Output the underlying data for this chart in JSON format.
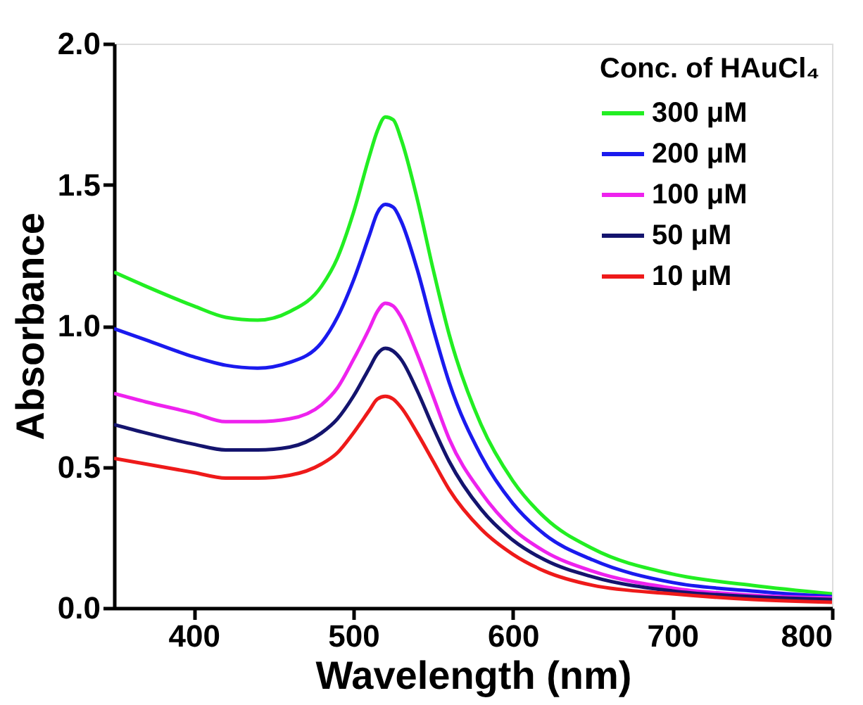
{
  "chart_data": {
    "type": "line",
    "xlabel": "Wavelength (nm)",
    "ylabel": "Absorbance",
    "legend_title": "Conc. of HAuCl₄",
    "legend": "top right",
    "grid": false,
    "marker": "none",
    "line_style": "solid",
    "xlim": [
      350,
      800
    ],
    "xticks": [
      400,
      500,
      600,
      700,
      800
    ],
    "ylim": [
      0,
      2.0
    ],
    "yticks": [
      {
        "value": 0,
        "label": "0.0"
      },
      0.5,
      {
        "value": 1,
        "label": "1.0"
      },
      1.5,
      {
        "value": 2,
        "label": "2.0"
      }
    ],
    "x": [
      350,
      370,
      400,
      420,
      440,
      460,
      480,
      490,
      500,
      510,
      515,
      520,
      525,
      530,
      540,
      550,
      560,
      580,
      600,
      620,
      650,
      700,
      750,
      800
    ],
    "series": [
      {
        "name": "300 μM",
        "color": "#22ee22",
        "values": [
          1.19,
          1.14,
          1.07,
          1.03,
          1.02,
          1.05,
          1.14,
          1.24,
          1.4,
          1.6,
          1.69,
          1.74,
          1.73,
          1.66,
          1.45,
          1.2,
          0.97,
          0.65,
          0.45,
          0.32,
          0.21,
          0.12,
          0.08,
          0.05
        ]
      },
      {
        "name": "200 μM",
        "color": "#1a1aee",
        "values": [
          0.99,
          0.95,
          0.89,
          0.86,
          0.85,
          0.87,
          0.94,
          1.03,
          1.16,
          1.32,
          1.4,
          1.43,
          1.42,
          1.37,
          1.2,
          0.99,
          0.8,
          0.54,
          0.37,
          0.26,
          0.17,
          0.09,
          0.06,
          0.04
        ]
      },
      {
        "name": "100 μM",
        "color": "#ee22ee",
        "values": [
          0.76,
          0.73,
          0.69,
          0.66,
          0.66,
          0.67,
          0.72,
          0.78,
          0.88,
          0.99,
          1.05,
          1.08,
          1.07,
          1.03,
          0.9,
          0.75,
          0.6,
          0.41,
          0.28,
          0.2,
          0.13,
          0.07,
          0.045,
          0.035
        ]
      },
      {
        "name": "50 μM",
        "color": "#14146e",
        "values": [
          0.65,
          0.62,
          0.58,
          0.56,
          0.56,
          0.57,
          0.62,
          0.67,
          0.75,
          0.85,
          0.9,
          0.92,
          0.91,
          0.88,
          0.77,
          0.64,
          0.52,
          0.35,
          0.24,
          0.17,
          0.11,
          0.06,
          0.04,
          0.03
        ]
      },
      {
        "name": "10 μM",
        "color": "#ee1a1a",
        "values": [
          0.53,
          0.51,
          0.48,
          0.46,
          0.46,
          0.47,
          0.51,
          0.55,
          0.62,
          0.7,
          0.74,
          0.75,
          0.74,
          0.71,
          0.62,
          0.52,
          0.42,
          0.28,
          0.19,
          0.13,
          0.08,
          0.05,
          0.03,
          0.02
        ]
      }
    ]
  }
}
